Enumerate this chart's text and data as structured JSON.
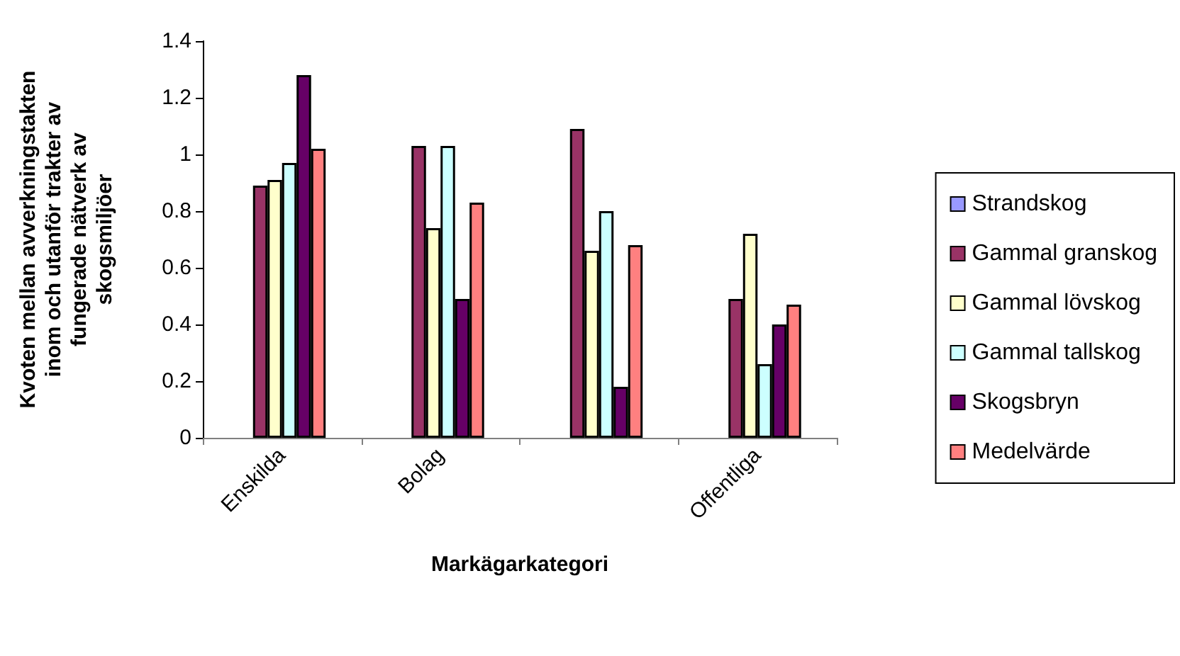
{
  "chart_data": {
    "type": "bar",
    "xlabel": "Markägarkategori",
    "ylabel": "Kvoten mellan avverkningstakten\ninom och utanför trakter av\nfungerade nätverk av\nskogsmiljöer",
    "categories": [
      "Enskilda",
      "Bolag",
      null,
      "Offentliga"
    ],
    "series": [
      {
        "name": "Strandskog",
        "color": "#9999ff",
        "values": [
          null,
          null,
          null,
          null
        ]
      },
      {
        "name": "Gammal granskog",
        "color": "#993366",
        "values": [
          0.89,
          1.03,
          1.09,
          0.49
        ]
      },
      {
        "name": "Gammal lövskog",
        "color": "#ffffcc",
        "values": [
          0.91,
          0.74,
          0.66,
          0.72
        ]
      },
      {
        "name": "Gammal tallskog",
        "color": "#ccffff",
        "values": [
          0.97,
          1.03,
          0.8,
          0.26
        ]
      },
      {
        "name": "Skogsbryn",
        "color": "#660066",
        "values": [
          1.28,
          0.49,
          0.18,
          0.4
        ]
      },
      {
        "name": "Medelvärde",
        "color": "#ff8080",
        "values": [
          1.02,
          0.83,
          0.68,
          0.47
        ]
      }
    ],
    "ylim": [
      0,
      1.4
    ],
    "yticks": [
      0,
      0.2,
      0.4,
      0.6,
      0.8,
      1,
      1.2,
      1.4
    ],
    "grid": false,
    "legend": "right"
  }
}
